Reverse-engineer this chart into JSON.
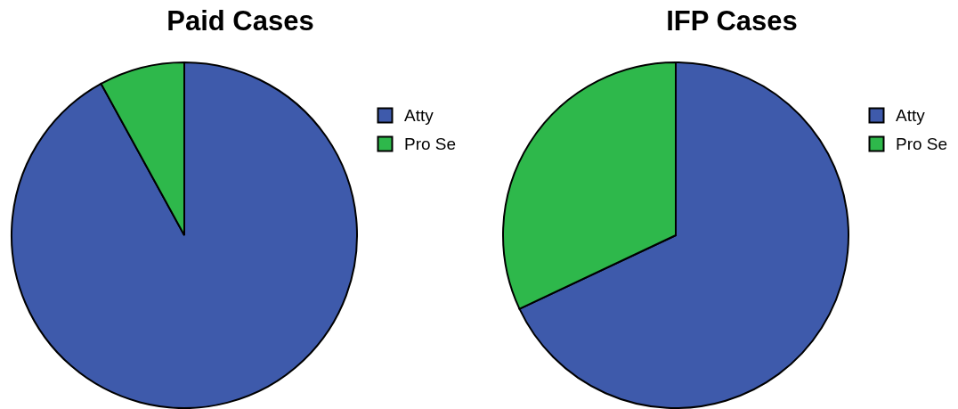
{
  "chart_data": [
    {
      "type": "pie",
      "title": "Paid Cases",
      "categories": [
        "Atty",
        "Pro Se"
      ],
      "values": [
        92,
        8
      ],
      "colors": [
        "#3e5aab",
        "#2eb84b"
      ],
      "legend": "right"
    },
    {
      "type": "pie",
      "title": "IFP Cases",
      "categories": [
        "Atty",
        "Pro Se"
      ],
      "values": [
        68,
        32
      ],
      "colors": [
        "#3e5aab",
        "#2eb84b"
      ],
      "legend": "right"
    }
  ]
}
